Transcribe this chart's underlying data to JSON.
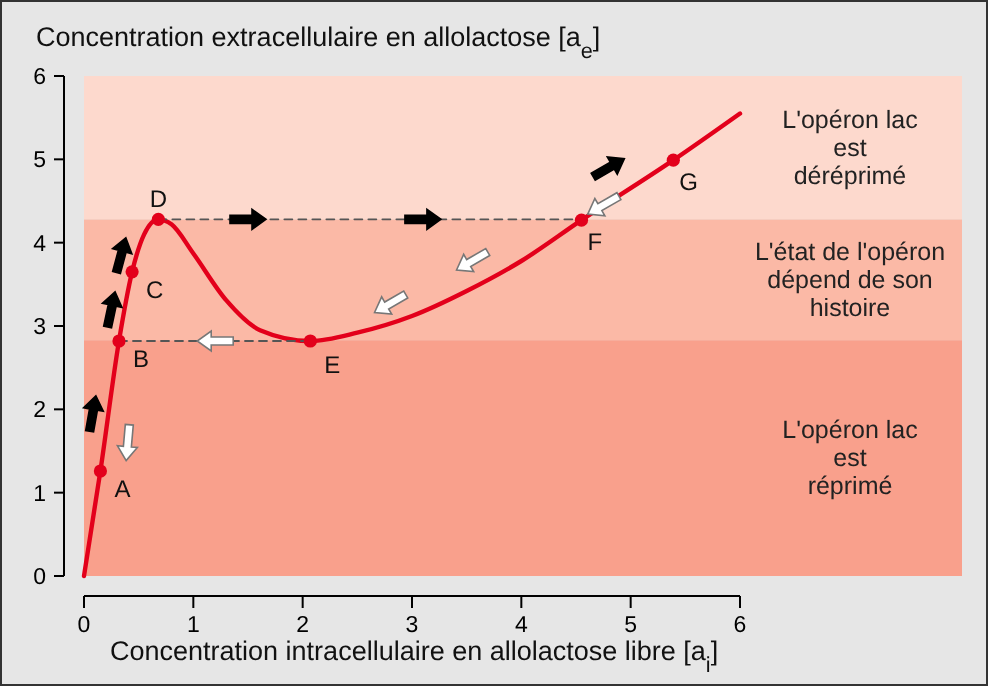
{
  "chart_data": {
    "type": "line",
    "title": "Concentration extracellulaire en allolactose [a$_{e}$]",
    "xlabel": "Concentration intracellulaire en allolactose libre [a$_{i}$]",
    "xlim": [
      0,
      6
    ],
    "ylim": [
      0,
      6
    ],
    "xticks": [
      0,
      1,
      2,
      3,
      4,
      5,
      6
    ],
    "yticks": [
      0,
      1,
      2,
      3,
      4,
      5,
      6
    ],
    "bands": [
      {
        "axis": "y",
        "from": 0,
        "to": 2.83,
        "label": "L'opéron lac\nest\nréprimé",
        "color": "#f9a08c"
      },
      {
        "axis": "y",
        "from": 2.83,
        "to": 4.28,
        "label": "L'état de l'opéron\ndépend de son\nhistoire",
        "color": "#fbb9a6"
      },
      {
        "axis": "y",
        "from": 4.28,
        "to": 6,
        "label": "L'opéron lac\nest\ndéréprimé",
        "color": "#fdd9cd"
      }
    ],
    "series": [
      {
        "color": "#e3001b",
        "marker": "none",
        "line_style": "solid",
        "x": [
          0,
          0.15,
          0.32,
          0.44,
          0.55,
          0.68,
          0.8,
          1.0,
          1.3,
          1.61,
          2.07,
          2.5,
          3.0,
          3.5,
          4.0,
          4.55,
          5.39,
          6.0
        ],
        "values": [
          0,
          1.26,
          2.82,
          3.65,
          4.1,
          4.28,
          4.22,
          3.87,
          3.31,
          2.95,
          2.82,
          2.92,
          3.12,
          3.42,
          3.78,
          4.27,
          4.99,
          5.55
        ]
      },
      {
        "color": "#555555",
        "marker": "none",
        "line_style": "dashed",
        "x": [
          0.68,
          4.55
        ],
        "values": [
          4.28,
          4.28
        ]
      },
      {
        "color": "#555555",
        "marker": "none",
        "line_style": "dashed",
        "x": [
          0.32,
          2.07
        ],
        "values": [
          2.82,
          2.82
        ]
      },
      {
        "type": "scatter",
        "color": "#e3001b",
        "marker": "circle",
        "x": [
          0.15,
          0.32,
          0.44,
          0.68,
          2.07,
          4.55,
          5.39
        ],
        "values": [
          1.26,
          2.82,
          3.65,
          4.28,
          2.82,
          4.27,
          4.99
        ]
      }
    ],
    "annotations": [
      {
        "text": "A",
        "x": 0.15,
        "y": 1.26
      },
      {
        "text": "B",
        "x": 0.32,
        "y": 2.82
      },
      {
        "text": "C",
        "x": 0.44,
        "y": 3.65
      },
      {
        "text": "D",
        "x": 0.68,
        "y": 4.28
      },
      {
        "text": "E",
        "x": 2.07,
        "y": 2.82
      },
      {
        "text": "F",
        "x": 4.55,
        "y": 4.27
      },
      {
        "text": "G",
        "x": 5.39,
        "y": 4.99
      }
    ]
  }
}
